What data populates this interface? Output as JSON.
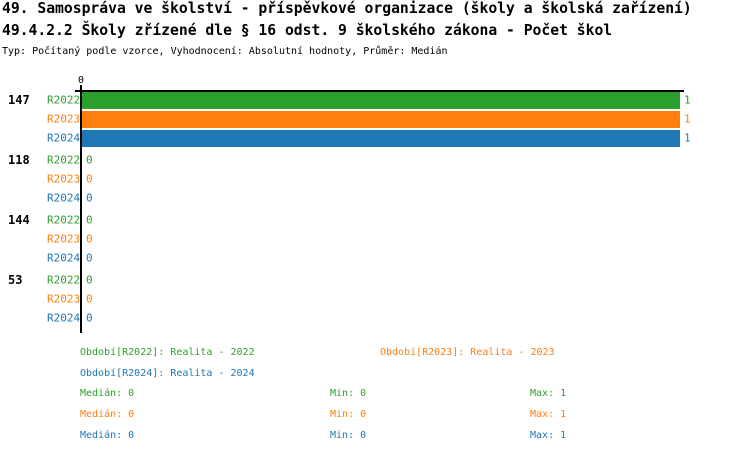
{
  "header": {
    "title_line1": "49. Samospráva ve školství - příspěvkové organizace (školy a školská zařízení)",
    "title_line2": "49.4.2.2 Školy zřízené dle § 16 odst. 9 školského zákona - Počet škol",
    "subtitle": "Typ: Počítaný podle vzorce, Vyhodnocení: Absolutní hodnoty, Průměr: Medián"
  },
  "chart_data": {
    "type": "bar",
    "orientation": "horizontal",
    "value_axis": {
      "tick_labels": [
        "0"
      ],
      "range": [
        0,
        1
      ]
    },
    "groups": [
      {
        "label": "147",
        "bars": [
          {
            "series": "R2022",
            "value": 1
          },
          {
            "series": "R2023",
            "value": 1
          },
          {
            "series": "R2024",
            "value": 1
          }
        ]
      },
      {
        "label": "118",
        "bars": [
          {
            "series": "R2022",
            "value": 0
          },
          {
            "series": "R2023",
            "value": 0
          },
          {
            "series": "R2024",
            "value": 0
          }
        ]
      },
      {
        "label": "144",
        "bars": [
          {
            "series": "R2022",
            "value": 0
          },
          {
            "series": "R2023",
            "value": 0
          },
          {
            "series": "R2024",
            "value": 0
          }
        ]
      },
      {
        "label": "53",
        "bars": [
          {
            "series": "R2022",
            "value": 0
          },
          {
            "series": "R2023",
            "value": 0
          },
          {
            "series": "R2024",
            "value": 0
          }
        ]
      }
    ],
    "series_meta": [
      {
        "name": "R2022",
        "color": "#2ca02c",
        "legend_label": "Období[R2022]: Realita - 2022",
        "median": 0,
        "min": 0,
        "max": 1
      },
      {
        "name": "R2023",
        "color": "#ff7f0e",
        "legend_label": "Období[R2023]: Realita - 2023",
        "median": 0,
        "min": 0,
        "max": 1
      },
      {
        "name": "R2024",
        "color": "#1f77b4",
        "legend_label": "Období[R2024]: Realita - 2024",
        "median": 0,
        "min": 0,
        "max": 1
      }
    ],
    "stats_labels": {
      "median": "Medián",
      "min": "Min",
      "max": "Max"
    }
  }
}
